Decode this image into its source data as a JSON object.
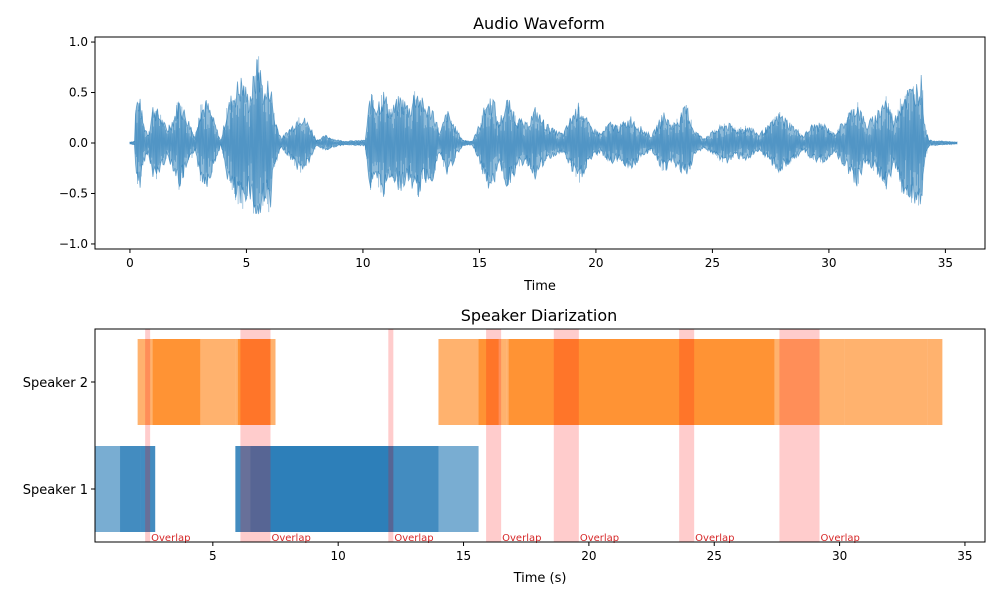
{
  "colors": {
    "waveform": "#1f77b4",
    "speaker1": "#1f77b4",
    "speaker2": "#ff7f0e",
    "overlap": "#ff0000",
    "overlap_text": "#d62728",
    "axis": "#000000"
  },
  "chart_data": [
    {
      "type": "area",
      "title": "Audio Waveform",
      "xlabel": "Time",
      "ylabel": "",
      "xlim": [
        -1.5,
        36.7
      ],
      "ylim": [
        -1.05,
        1.05
      ],
      "xticks": [
        0,
        5,
        10,
        15,
        20,
        25,
        30,
        35
      ],
      "xtick_labels": [
        "0",
        "5",
        "10",
        "15",
        "20",
        "25",
        "30",
        "35"
      ],
      "yticks": [
        1.0,
        0.5,
        0.0,
        -0.5,
        -1.0
      ],
      "ytick_labels": [
        "1.0",
        "0.5",
        "0.0",
        "−0.5",
        "−1.0"
      ],
      "grid": false,
      "series": [
        {
          "envelope": [
            [
              0.0,
              0.01
            ],
            [
              0.2,
              0.02
            ],
            [
              0.25,
              0.45
            ],
            [
              0.4,
              0.5
            ],
            [
              0.6,
              0.2
            ],
            [
              0.8,
              0.1
            ],
            [
              1.0,
              0.42
            ],
            [
              1.3,
              0.3
            ],
            [
              1.6,
              0.15
            ],
            [
              1.9,
              0.3
            ],
            [
              2.1,
              0.47
            ],
            [
              2.4,
              0.32
            ],
            [
              2.8,
              0.06
            ],
            [
              3.0,
              0.38
            ],
            [
              3.3,
              0.45
            ],
            [
              3.6,
              0.25
            ],
            [
              3.9,
              0.02
            ],
            [
              4.2,
              0.4
            ],
            [
              4.5,
              0.6
            ],
            [
              4.8,
              0.7
            ],
            [
              5.1,
              0.5
            ],
            [
              5.5,
              0.9
            ],
            [
              5.8,
              0.55
            ],
            [
              6.0,
              0.72
            ],
            [
              6.2,
              0.28
            ],
            [
              6.5,
              0.05
            ],
            [
              7.0,
              0.2
            ],
            [
              7.3,
              0.32
            ],
            [
              7.7,
              0.2
            ],
            [
              8.0,
              0.03
            ],
            [
              8.4,
              0.08
            ],
            [
              8.8,
              0.04
            ],
            [
              9.2,
              0.02
            ],
            [
              10.1,
              0.03
            ],
            [
              10.3,
              0.5
            ],
            [
              10.6,
              0.45
            ],
            [
              10.9,
              0.55
            ],
            [
              11.2,
              0.35
            ],
            [
              11.6,
              0.5
            ],
            [
              12.0,
              0.4
            ],
            [
              12.3,
              0.6
            ],
            [
              12.6,
              0.42
            ],
            [
              13.0,
              0.38
            ],
            [
              13.3,
              0.1
            ],
            [
              13.6,
              0.35
            ],
            [
              14.0,
              0.15
            ],
            [
              14.3,
              0.03
            ],
            [
              14.7,
              0.02
            ],
            [
              15.0,
              0.2
            ],
            [
              15.3,
              0.45
            ],
            [
              15.6,
              0.5
            ],
            [
              15.8,
              0.2
            ],
            [
              16.2,
              0.47
            ],
            [
              16.6,
              0.28
            ],
            [
              17.0,
              0.2
            ],
            [
              17.4,
              0.37
            ],
            [
              17.8,
              0.22
            ],
            [
              18.2,
              0.14
            ],
            [
              18.6,
              0.1
            ],
            [
              19.0,
              0.32
            ],
            [
              19.3,
              0.42
            ],
            [
              19.7,
              0.2
            ],
            [
              20.2,
              0.1
            ],
            [
              20.6,
              0.22
            ],
            [
              21.0,
              0.18
            ],
            [
              21.5,
              0.28
            ],
            [
              22.0,
              0.15
            ],
            [
              22.4,
              0.08
            ],
            [
              22.9,
              0.32
            ],
            [
              23.3,
              0.2
            ],
            [
              23.9,
              0.4
            ],
            [
              24.2,
              0.15
            ],
            [
              24.6,
              0.05
            ],
            [
              25.0,
              0.12
            ],
            [
              25.6,
              0.22
            ],
            [
              26.0,
              0.15
            ],
            [
              26.5,
              0.18
            ],
            [
              27.0,
              0.1
            ],
            [
              27.4,
              0.18
            ],
            [
              27.9,
              0.32
            ],
            [
              28.4,
              0.2
            ],
            [
              28.9,
              0.08
            ],
            [
              29.3,
              0.2
            ],
            [
              29.8,
              0.2
            ],
            [
              30.2,
              0.1
            ],
            [
              30.7,
              0.25
            ],
            [
              31.2,
              0.45
            ],
            [
              31.6,
              0.2
            ],
            [
              32.0,
              0.3
            ],
            [
              32.4,
              0.5
            ],
            [
              32.8,
              0.25
            ],
            [
              33.2,
              0.55
            ],
            [
              33.6,
              0.6
            ],
            [
              34.0,
              0.7
            ],
            [
              34.1,
              0.2
            ],
            [
              34.3,
              0.03
            ],
            [
              35.5,
              0.01
            ]
          ]
        }
      ]
    },
    {
      "type": "bar",
      "orientation": "horizontal-spans",
      "title": "Speaker Diarization",
      "xlabel": "Time (s)",
      "ylabel": "",
      "xlim": [
        0.3,
        35.8
      ],
      "xticks": [
        5,
        10,
        15,
        20,
        25,
        30,
        35
      ],
      "xtick_labels": [
        "5",
        "10",
        "15",
        "20",
        "25",
        "30",
        "35"
      ],
      "categories": [
        "Speaker 1",
        "Speaker 2"
      ],
      "grid": false,
      "series": [
        {
          "name": "Speaker 1",
          "segments": [
            [
              0.3,
              2.1
            ],
            [
              1.3,
              2.7
            ],
            [
              2.1,
              2.7
            ],
            [
              5.9,
              7.5
            ],
            [
              5.9,
              14.0
            ],
            [
              7.5,
              14.0
            ],
            [
              6.5,
              12.2
            ],
            [
              14.0,
              15.6
            ]
          ]
        },
        {
          "name": "Speaker 2",
          "segments": [
            [
              2.0,
              4.5
            ],
            [
              2.6,
              4.5
            ],
            [
              4.5,
              5.9
            ],
            [
              5.9,
              7.5
            ],
            [
              6.0,
              7.3
            ],
            [
              14.0,
              16.7
            ],
            [
              15.6,
              16.4
            ],
            [
              16.7,
              27.4
            ],
            [
              16.8,
              27.4
            ],
            [
              27.4,
              30.2
            ],
            [
              30.2,
              33.5
            ],
            [
              33.5,
              34.1
            ]
          ]
        }
      ],
      "overlaps": [
        {
          "start": 2.3,
          "end": 2.5,
          "label": "Overlap"
        },
        {
          "start": 6.1,
          "end": 7.3,
          "label": "Overlap"
        },
        {
          "start": 12.0,
          "end": 12.2,
          "label": "Overlap"
        },
        {
          "start": 15.9,
          "end": 16.5,
          "label": "Overlap"
        },
        {
          "start": 18.6,
          "end": 19.6,
          "label": "Overlap"
        },
        {
          "start": 23.6,
          "end": 24.2,
          "label": "Overlap"
        },
        {
          "start": 27.6,
          "end": 29.2,
          "label": "Overlap"
        }
      ]
    }
  ]
}
